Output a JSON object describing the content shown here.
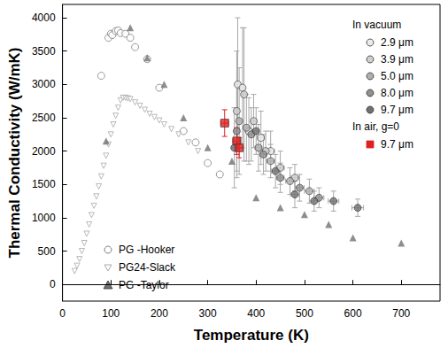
{
  "chart_data": {
    "type": "scatter",
    "x_label": "Temperature (K)",
    "y_label": "Thermal Conductivity (W/mK)",
    "xlim": [
      0,
      780
    ],
    "xticks": [
      0,
      100,
      200,
      300,
      400,
      500,
      600,
      700
    ],
    "ylim": [
      -250,
      4200
    ],
    "yticks": [
      0,
      500,
      1000,
      1500,
      2000,
      2500,
      3000,
      3500,
      4000
    ],
    "grid": false,
    "series": [
      {
        "name": "2.9 μm",
        "group": "In vacuum",
        "color": "#ececec",
        "marker": "circle",
        "x": [
          362,
          372,
          385,
          410,
          430
        ],
        "values": [
          3000,
          2950,
          2300,
          2200,
          2000
        ],
        "yerr": [
          1000,
          900,
          500,
          400,
          300
        ],
        "xerr": [
          5,
          5,
          6,
          7,
          8
        ]
      },
      {
        "name": "3.9 μm",
        "group": "In vacuum",
        "color": "#d0d0d0",
        "marker": "circle",
        "x": [
          360,
          375,
          395,
          420,
          450,
          480
        ],
        "values": [
          2600,
          2850,
          2450,
          2000,
          1750,
          1600
        ],
        "yerr": [
          900,
          1000,
          400,
          300,
          250,
          200
        ],
        "xerr": [
          5,
          5,
          6,
          7,
          8,
          9
        ]
      },
      {
        "name": "5.0 μm",
        "group": "In vacuum",
        "color": "#b0b0b0",
        "marker": "circle",
        "x": [
          365,
          380,
          405,
          430,
          470,
          510
        ],
        "values": [
          2450,
          2350,
          2050,
          1850,
          1550,
          1400
        ],
        "yerr": [
          800,
          500,
          350,
          250,
          200,
          180
        ],
        "xerr": [
          5,
          6,
          7,
          8,
          9,
          10
        ]
      },
      {
        "name": "8.0 μm",
        "group": "In vacuum",
        "color": "#909090",
        "marker": "circle",
        "x": [
          360,
          390,
          415,
          450,
          490,
          530
        ],
        "values": [
          2300,
          2250,
          1950,
          1600,
          1450,
          1300
        ],
        "yerr": [
          700,
          400,
          300,
          220,
          200,
          150
        ],
        "xerr": [
          5,
          6,
          7,
          8,
          9,
          10
        ]
      },
      {
        "name": "9.7 μm",
        "group": "In vacuum",
        "color": "#707070",
        "marker": "circle",
        "x": [
          355,
          400,
          440,
          480,
          520,
          560,
          610
        ],
        "values": [
          2050,
          2300,
          1700,
          1350,
          1250,
          1250,
          1150
        ],
        "yerr": [
          600,
          350,
          250,
          200,
          150,
          150,
          130
        ],
        "xerr": [
          5,
          6,
          8,
          9,
          10,
          11,
          12
        ]
      },
      {
        "name": "9.7 μm",
        "group": "In air, g=0",
        "color": "#e02020",
        "marker": "square",
        "x": [
          335,
          360,
          365
        ],
        "values": [
          2420,
          2150,
          2050
        ],
        "yerr": [
          200,
          200,
          150
        ],
        "xerr": [
          8,
          8,
          8
        ]
      },
      {
        "name": "PG -Hooker",
        "color": "#808080",
        "marker": "circle_open",
        "x": [
          80,
          95,
          100,
          103,
          110,
          115,
          120,
          130,
          140,
          150,
          175,
          200,
          250,
          275,
          300,
          325
        ],
        "values": [
          3130,
          3700,
          3760,
          3740,
          3800,
          3810,
          3770,
          3760,
          3700,
          3560,
          3380,
          2950,
          2300,
          2130,
          1820,
          1650
        ]
      },
      {
        "name": "PG24-Slack",
        "color": "#a8a8a8",
        "marker": "triangle_down_open",
        "x": [
          25,
          30,
          35,
          40,
          45,
          50,
          55,
          60,
          65,
          70,
          75,
          80,
          85,
          90,
          95,
          100,
          105,
          110,
          115,
          120,
          125,
          130,
          135,
          140,
          150,
          160,
          170,
          180,
          190,
          200,
          210,
          225,
          240,
          260,
          280
        ],
        "values": [
          200,
          280,
          380,
          500,
          620,
          760,
          900,
          1040,
          1180,
          1320,
          1470,
          1620,
          1780,
          1930,
          2100,
          2250,
          2400,
          2530,
          2650,
          2760,
          2800,
          2800,
          2790,
          2780,
          2730,
          2680,
          2620,
          2560,
          2510,
          2460,
          2400,
          2330,
          2250,
          2130,
          2000
        ]
      },
      {
        "name": "PG -Taylor",
        "color": "#707070",
        "marker": "triangle",
        "x": [
          90,
          140,
          175,
          210,
          250,
          300,
          350,
          400,
          450,
          500,
          550,
          600,
          700
        ],
        "values": [
          2150,
          3850,
          3400,
          3000,
          2500,
          2050,
          1850,
          1300,
          1150,
          1050,
          900,
          700,
          620
        ]
      }
    ]
  }
}
